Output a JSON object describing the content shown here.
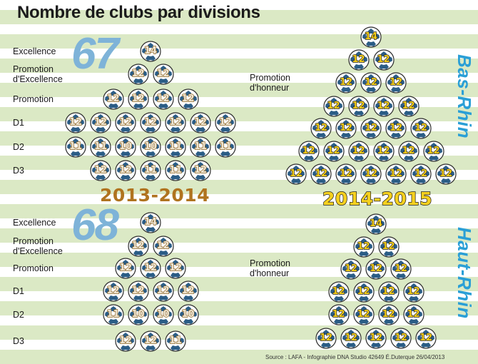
{
  "title": "Nombre de clubs par divisions",
  "seasons": {
    "old": "2013-2014",
    "new": "2014-2015"
  },
  "departments": {
    "bas_rhin": {
      "name": "Bas-Rhin",
      "old_total": "67"
    },
    "haut_rhin": {
      "name": "Haut-Rhin",
      "old_total": "68"
    }
  },
  "source": "Source : LAFA  -  Infographie DNA Studio 42649 É.Duterque 26/04/2013",
  "colors": {
    "dept_blue": "#2a9fd6",
    "number_blue": "#7eb3d8",
    "gold": "#f3cd19",
    "brown": "#b0731f",
    "field_green": "#dbe9c5"
  },
  "bas_rhin_2013": {
    "rows": [
      {
        "label": "Excellence",
        "balls": [
          "14"
        ]
      },
      {
        "label": "Promotion\nd'Excellence",
        "balls": [
          "12",
          "12"
        ]
      },
      {
        "label": "Promotion",
        "balls": [
          "12",
          "12",
          "12",
          "12"
        ]
      },
      {
        "label": "D1",
        "balls": [
          "12",
          "12",
          "12",
          "12",
          "12",
          "12",
          "12"
        ]
      },
      {
        "label": "D2",
        "balls": [
          "11",
          "11",
          "10",
          "10",
          "11",
          "11",
          "11"
        ]
      },
      {
        "label": "D3",
        "balls": [
          "12",
          "12",
          "11",
          "11",
          "12"
        ]
      }
    ]
  },
  "haut_rhin_2013": {
    "rows": [
      {
        "label": "Excellence",
        "balls": [
          "14"
        ]
      },
      {
        "label": "Promotion\nd'Excellence",
        "balls": [
          "12",
          "12"
        ]
      },
      {
        "label": "Promotion",
        "balls": [
          "12",
          "12",
          "12"
        ]
      },
      {
        "label": "D1",
        "balls": [
          "12",
          "12",
          "12",
          "12"
        ]
      },
      {
        "label": "D2",
        "balls": [
          "11",
          "10",
          "10",
          "10"
        ]
      },
      {
        "label": "D3",
        "balls": [
          "12",
          "12",
          "11"
        ]
      }
    ]
  },
  "bas_rhin_2014": {
    "label": "Promotion\nd'honneur",
    "rows": [
      [
        "14"
      ],
      [
        "12",
        "12"
      ],
      [
        "12",
        "12",
        "12"
      ],
      [
        "12",
        "12",
        "12",
        "12"
      ],
      [
        "12",
        "12",
        "12",
        "12",
        "12"
      ],
      [
        "12",
        "12",
        "12",
        "12",
        "12",
        "12"
      ],
      [
        "12",
        "12",
        "12",
        "12",
        "12",
        "12",
        "12"
      ]
    ]
  },
  "haut_rhin_2014": {
    "label": "Promotion\nd'honneur",
    "rows": [
      [
        "14"
      ],
      [
        "12",
        "12"
      ],
      [
        "12",
        "12",
        "12"
      ],
      [
        "12",
        "12",
        "12",
        "12"
      ],
      [
        "12",
        "12",
        "12",
        "12"
      ],
      [
        "12",
        "12",
        "12",
        "12",
        "12"
      ]
    ]
  }
}
